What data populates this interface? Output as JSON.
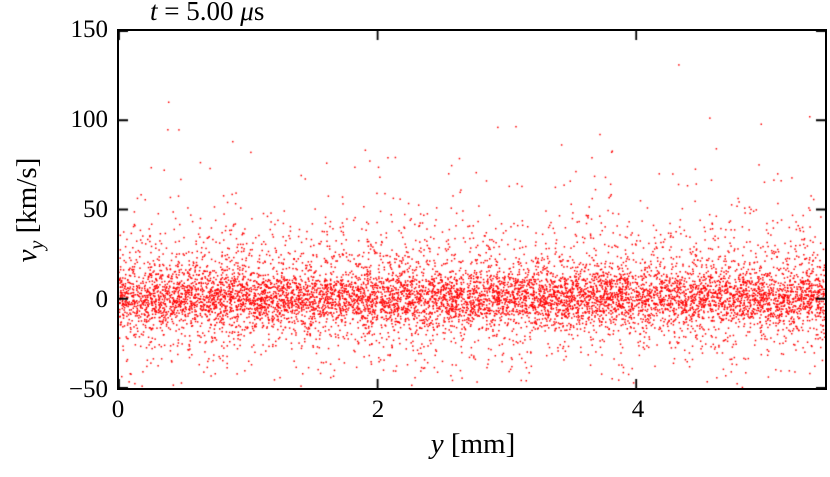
{
  "labels": {
    "title_var": "t",
    "title_mid": " = 5.00 ",
    "title_mu": "μ",
    "title_unit": "s",
    "xlabel_var": "y",
    "xlabel_unit": " [mm]",
    "ylabel_var": "v",
    "ylabel_sub": "y",
    "ylabel_unit": " [km/s]"
  },
  "chart_data": {
    "type": "scatter",
    "title": "t = 5.00 μs",
    "xlabel": "y [mm]",
    "ylabel": "v_y [km/s]",
    "xlim": [
      0,
      5.46
    ],
    "ylim": [
      -50,
      150
    ],
    "xticks": {
      "values": [
        0,
        2,
        4
      ],
      "labels": [
        "0",
        "2",
        "4"
      ]
    },
    "yticks": {
      "values": [
        -50,
        0,
        50,
        100,
        150
      ],
      "labels": [
        "−50",
        "0",
        "50",
        "100",
        "150"
      ]
    },
    "grid": false,
    "legend": "none",
    "marker_color": "#ff0000",
    "marker_size": 1.5,
    "n_points": 9000,
    "seed": 42,
    "x_distribution": "uniform",
    "y_mixture": [
      {
        "weight": 0.52,
        "mean": 0,
        "std": 7
      },
      {
        "weight": 0.33,
        "mean": 2,
        "std": 17
      },
      {
        "weight": 0.15,
        "mean": 10,
        "std": 30
      }
    ],
    "outliers": [
      [
        4.33,
        131
      ],
      [
        2.93,
        96
      ],
      [
        3.72,
        92
      ],
      [
        0.88,
        88
      ],
      [
        4.62,
        84
      ],
      [
        1.02,
        82
      ],
      [
        2.08,
        79
      ],
      [
        4.95,
        75
      ],
      [
        0.35,
        72
      ],
      [
        2.55,
        70
      ]
    ],
    "tick_dir": "in",
    "tick_length": 9
  }
}
